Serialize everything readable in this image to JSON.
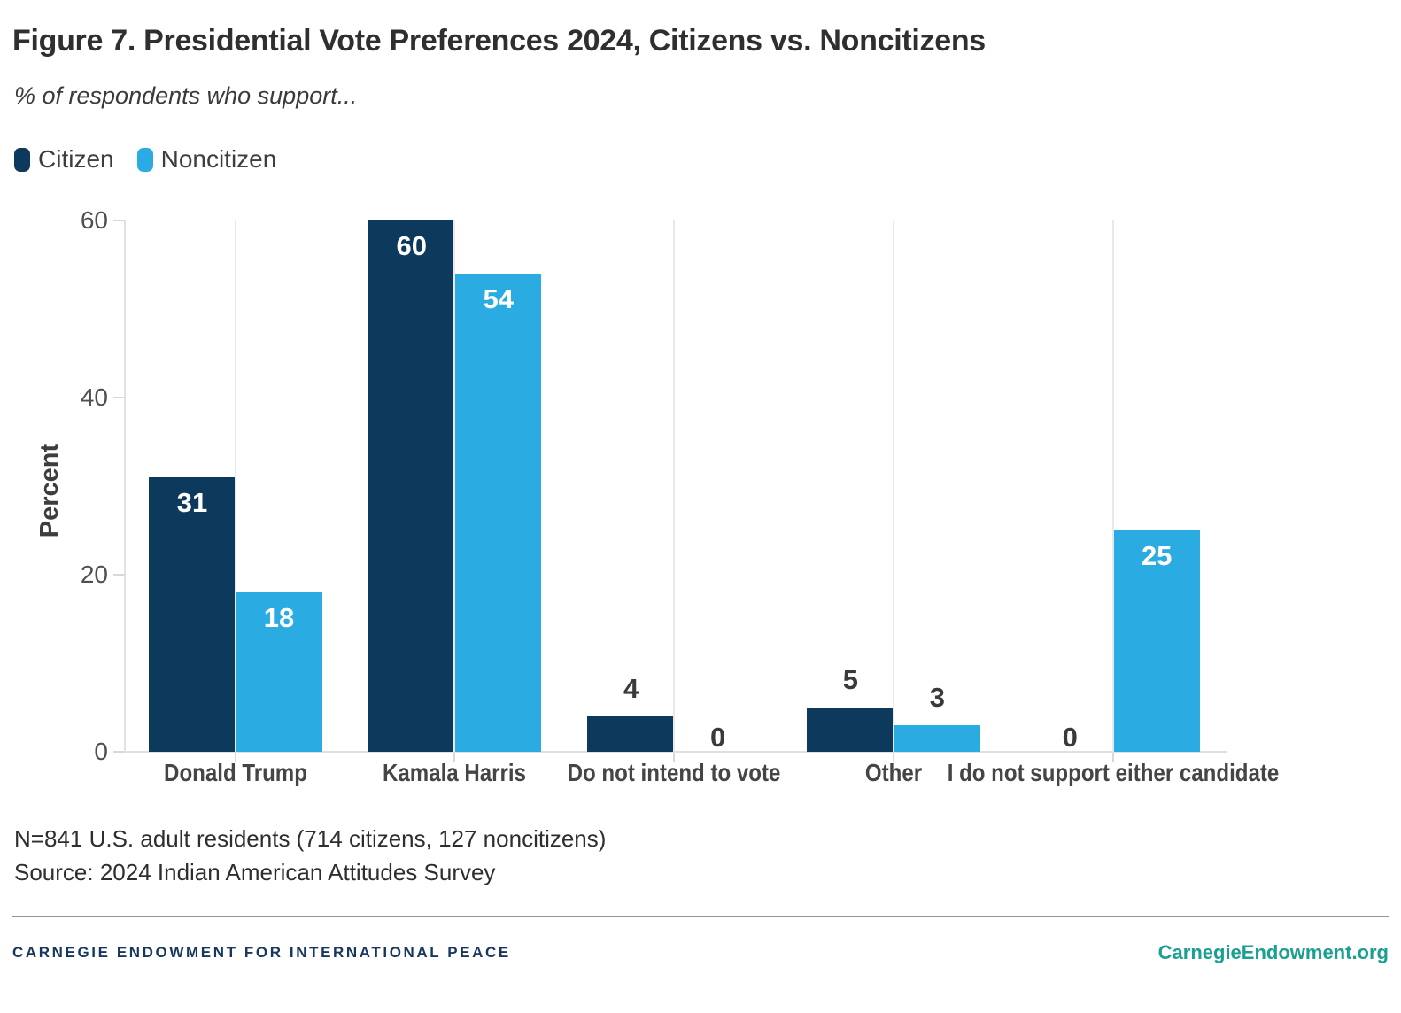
{
  "header": {
    "title": "Figure 7. Presidential Vote Preferences 2024, Citizens vs. Noncitizens",
    "subtitle": "% of respondents who support..."
  },
  "legend": [
    {
      "label": "Citizen",
      "color": "#0d3a5c"
    },
    {
      "label": "Noncitizen",
      "color": "#2aabe2"
    }
  ],
  "chart_data": {
    "type": "bar",
    "title": "Figure 7. Presidential Vote Preferences 2024, Citizens vs. Noncitizens",
    "subtitle": "% of respondents who support...",
    "categories": [
      "Donald Trump",
      "Kamala Harris",
      "Do not intend to vote",
      "Other",
      "I do not support either candidate"
    ],
    "series": [
      {
        "name": "Citizen",
        "color": "#0d3a5c",
        "values": [
          31,
          60,
          4,
          5,
          0
        ]
      },
      {
        "name": "Noncitizen",
        "color": "#2aabe2",
        "values": [
          18,
          54,
          0,
          3,
          25
        ]
      }
    ],
    "xlabel": "",
    "ylabel": "Percent",
    "ylim": [
      0,
      60
    ],
    "yticks": [
      0,
      20,
      40,
      60
    ],
    "grid": "vertical-lines-at-category-centers",
    "legend_position": "top-left",
    "value_labels": "inside-white-when-tall, dark-above-when-short"
  },
  "notes": {
    "sample": "N=841 U.S. adult residents (714 citizens, 127 noncitizens)",
    "source": "Source: 2024 Indian American Attitudes Survey"
  },
  "footer": {
    "org": "CARNEGIE ENDOWMENT FOR INTERNATIONAL PEACE",
    "site": "CarnegieEndowment.org",
    "org_color": "#17375e",
    "site_color": "#1a9f90"
  }
}
